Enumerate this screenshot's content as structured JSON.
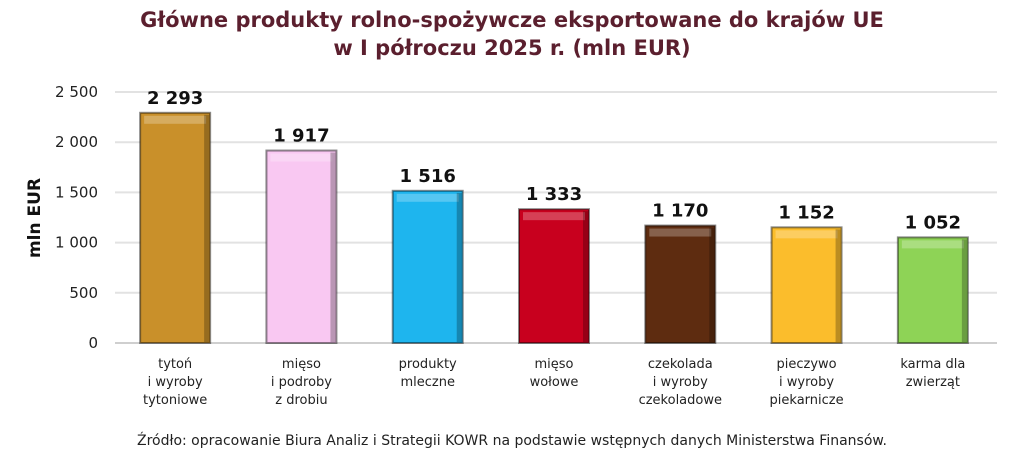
{
  "chart_data": {
    "type": "bar",
    "title": [
      "Główne produkty rolno-spożywcze eksportowane do krajów UE",
      "w I półroczu 2025 r. (mln EUR)"
    ],
    "xlabel": "",
    "ylabel": "mln EUR",
    "ylim": [
      0,
      2500
    ],
    "yticks": [
      0,
      500,
      1000,
      1500,
      2000,
      2500
    ],
    "ytick_labels": [
      "0",
      "500",
      "1 000",
      "1 500",
      "2 000",
      "2 500"
    ],
    "grid": true,
    "categories": [
      [
        "tytoń",
        "i wyroby",
        "tytoniowe"
      ],
      [
        "mięso",
        "i podroby",
        "z drobiu"
      ],
      [
        "produkty",
        "mleczne"
      ],
      [
        "mięso",
        "wołowe"
      ],
      [
        "czekolada",
        "i wyroby",
        "czekoladowe"
      ],
      [
        "pieczywo",
        "i wyroby",
        "piekarnicze"
      ],
      [
        "karma dla",
        "zwierząt"
      ]
    ],
    "values": [
      2293,
      1917,
      1516,
      1333,
      1170,
      1152,
      1052
    ],
    "value_labels": [
      "2 293",
      "1 917",
      "1 516",
      "1 333",
      "1 170",
      "1 152",
      "1 052"
    ],
    "colors": [
      "#c9902a",
      "#f9c8f2",
      "#1eb5ee",
      "#c8001e",
      "#5e2c10",
      "#fbbd2c",
      "#8ed356"
    ]
  },
  "source": "Źródło: opracowanie Biura Analiz i Strategii KOWR na podstawie wstępnych danych Ministerstwa Finansów."
}
